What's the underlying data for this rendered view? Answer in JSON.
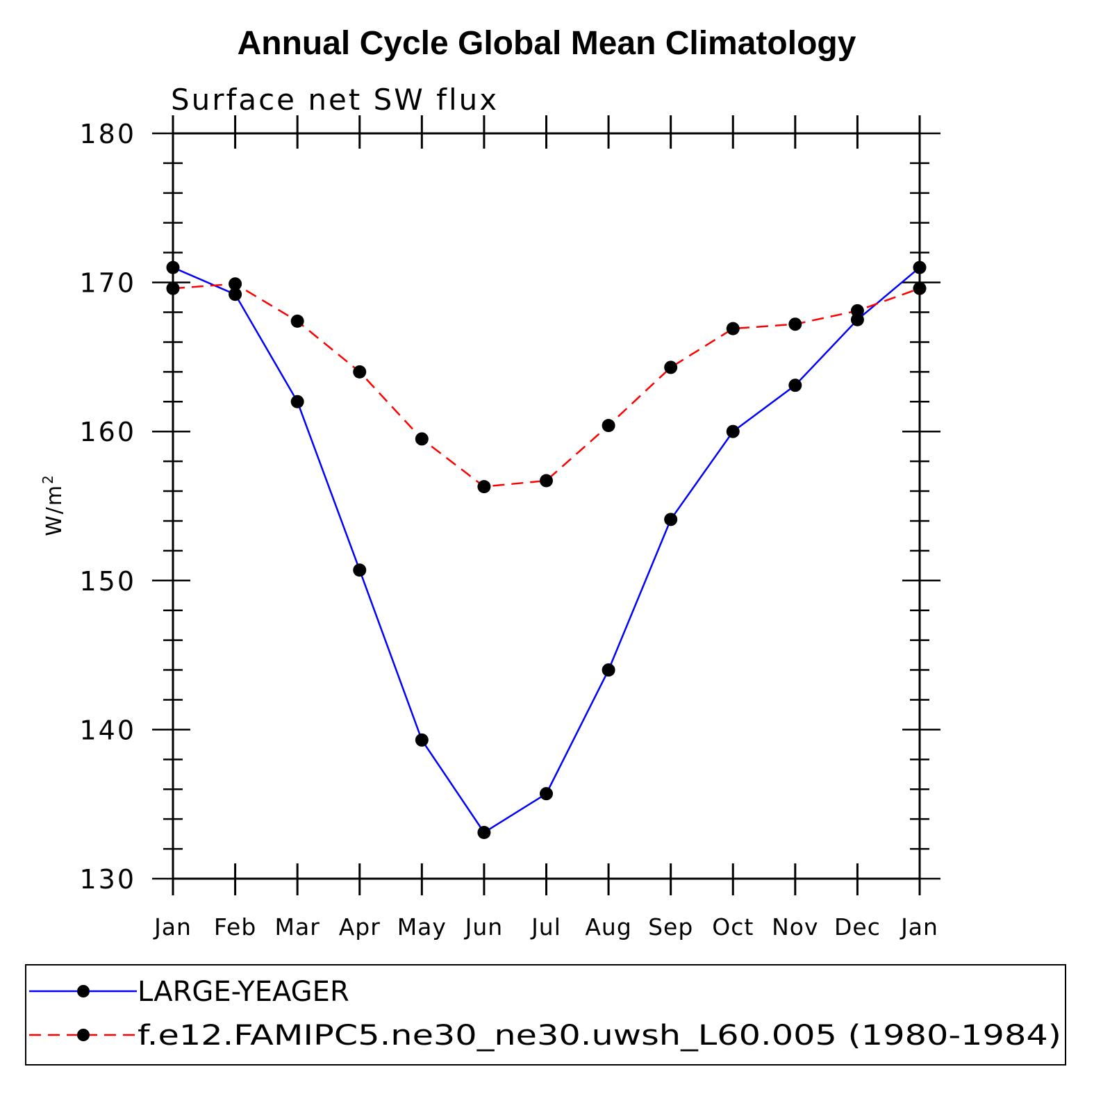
{
  "title": "Annual Cycle Global Mean Climatology",
  "chart_data": {
    "type": "line",
    "subtitle": "Surface net SW flux",
    "ylabel": "W/m",
    "ylabel_sup": "2",
    "xlabel": "",
    "categories": [
      "Jan",
      "Feb",
      "Mar",
      "Apr",
      "May",
      "Jun",
      "Jul",
      "Aug",
      "Sep",
      "Oct",
      "Nov",
      "Dec",
      "Jan"
    ],
    "ylim": [
      130,
      180
    ],
    "yticks": [
      "130",
      "140",
      "150",
      "160",
      "170",
      "180"
    ],
    "grid": false,
    "legend_position": "bottom",
    "series": [
      {
        "name": "LARGE-YEAGER",
        "color": "#0000ff",
        "dash": "solid",
        "marker": "filled-circle",
        "values": [
          171.0,
          169.2,
          162.0,
          150.7,
          139.3,
          133.1,
          135.7,
          144.0,
          154.1,
          160.0,
          163.1,
          167.5,
          171.0
        ]
      },
      {
        "name": "f.e12.FAMIPC5.ne30_ne30.uwsh_L60.005 (1980-1984)",
        "color": "#ff0000",
        "dash": "dashed",
        "marker": "filled-circle",
        "values": [
          169.6,
          169.9,
          167.4,
          164.0,
          159.5,
          156.3,
          156.7,
          160.4,
          164.3,
          166.9,
          167.2,
          168.1,
          169.6
        ]
      }
    ]
  }
}
